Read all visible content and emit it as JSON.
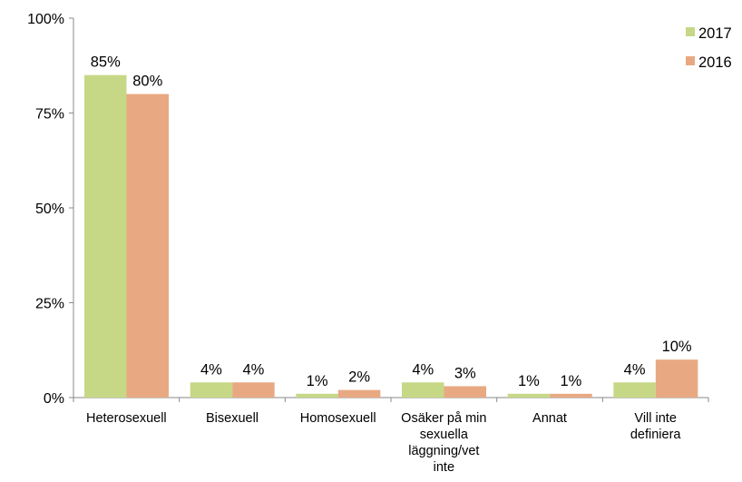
{
  "chart_data": {
    "type": "bar",
    "categories": [
      [
        "Heterosexuell"
      ],
      [
        "Bisexuell"
      ],
      [
        "Homosexuell"
      ],
      [
        "Osäker på min",
        "sexuella",
        "läggning/vet",
        "inte"
      ],
      [
        "Annat"
      ],
      [
        "Vill inte",
        "definiera"
      ]
    ],
    "series": [
      {
        "name": "2017",
        "color": "#c6d886",
        "values": [
          85,
          4,
          1,
          4,
          1,
          4
        ],
        "labels": [
          "85%",
          "4%",
          "1%",
          "4%",
          "1%",
          "4%"
        ]
      },
      {
        "name": "2016",
        "color": "#e8a982",
        "values": [
          80,
          4,
          2,
          3,
          1,
          10
        ],
        "labels": [
          "80%",
          "4%",
          "2%",
          "3%",
          "1%",
          "10%"
        ]
      }
    ],
    "ylim": [
      0,
      100
    ],
    "yticks": [
      {
        "value": 0,
        "label": "0%"
      },
      {
        "value": 25,
        "label": "25%"
      },
      {
        "value": 50,
        "label": "50%"
      },
      {
        "value": 75,
        "label": "75%"
      },
      {
        "value": 100,
        "label": "100%"
      }
    ],
    "grid": false,
    "legend": "top-right",
    "title": "",
    "xlabel": "",
    "ylabel": ""
  }
}
